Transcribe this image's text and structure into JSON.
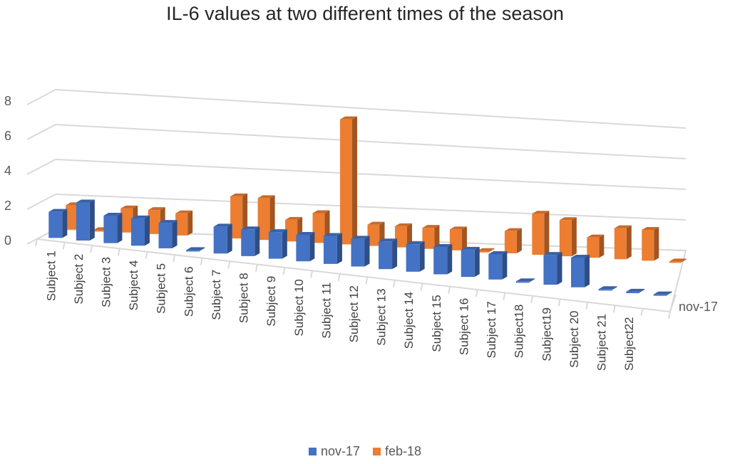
{
  "chart_data": {
    "type": "bar",
    "subtype": "3d-column",
    "title": "IL-6 values at two different times of the season",
    "xlabel": "",
    "ylabel": "",
    "ylim": [
      0,
      8
    ],
    "yticks": [
      0,
      2,
      4,
      6,
      8
    ],
    "grid": true,
    "legend_position": "bottom",
    "depth_axis_label": "nov-17",
    "categories": [
      "Subject 1",
      "Subject 2",
      "Subject 3",
      "Subject 4",
      "Subject 5",
      "Subject 6",
      "Subject 7",
      "Subject 8",
      "Subject 9",
      "Subject 10",
      "Subject 11",
      "Subject 12",
      "Subject 13",
      "Subject 14",
      "Subject 15",
      "Subject 16",
      "Subject 17",
      "Subject18",
      "Subject19",
      "Subject 20",
      "Subject 21",
      "Subject22",
      ""
    ],
    "series": [
      {
        "name": "nov-17",
        "color": "#4472C4",
        "values": [
          1.5,
          2.2,
          1.6,
          1.6,
          1.5,
          0.05,
          1.6,
          1.6,
          1.6,
          1.6,
          1.7,
          1.7,
          1.7,
          1.7,
          1.7,
          1.7,
          1.6,
          0.05,
          1.9,
          1.9,
          0.05,
          0.05,
          0.05
        ]
      },
      {
        "name": "feb-18",
        "color": "#ED7D31",
        "values": [
          1.4,
          0.05,
          1.4,
          1.4,
          1.3,
          0,
          2.5,
          2.5,
          1.3,
          1.8,
          7.6,
          1.3,
          1.3,
          1.3,
          1.3,
          0.05,
          1.4,
          2.6,
          2.3,
          1.3,
          2.0,
          2.0,
          0.05
        ]
      }
    ]
  }
}
